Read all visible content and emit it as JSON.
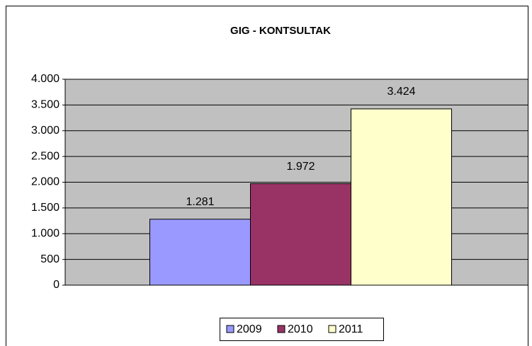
{
  "chart_data": {
    "type": "bar",
    "title": "GIG - KONTSULTAK",
    "categories": [
      null
    ],
    "series": [
      {
        "name": "2009",
        "color": "#9999ff",
        "values": [
          1281
        ],
        "value_labels": [
          "1.281"
        ]
      },
      {
        "name": "2010",
        "color": "#993366",
        "values": [
          1972
        ],
        "value_labels": [
          "1.972"
        ]
      },
      {
        "name": "2011",
        "color": "#ffffcc",
        "values": [
          3424
        ],
        "value_labels": [
          "3.424"
        ]
      }
    ],
    "ylim": [
      0,
      4000
    ],
    "yticks": [
      0,
      500,
      {
        "value": 1000,
        "label": "1.000"
      },
      {
        "value": 1500,
        "label": "1.500"
      },
      {
        "value": 2000,
        "label": "2.000"
      },
      {
        "value": 2500,
        "label": "2.500"
      },
      {
        "value": 3000,
        "label": "3.000"
      },
      {
        "value": 3500,
        "label": "3.500"
      },
      {
        "value": 4000,
        "label": "4.000"
      }
    ],
    "grid": true,
    "legend": "bottom",
    "plot_background": "#c0c0c0"
  }
}
